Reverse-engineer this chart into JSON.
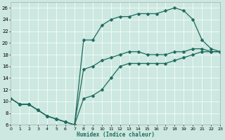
{
  "xlabel": "Humidex (Indice chaleur)",
  "bg_color": "#cce8e0",
  "line_color": "#1e6b5e",
  "grid_color": "#ffffff",
  "xlim": [
    0,
    23
  ],
  "ylim": [
    6,
    27
  ],
  "yticks": [
    6,
    8,
    10,
    12,
    14,
    16,
    18,
    20,
    22,
    24,
    26
  ],
  "xticks": [
    0,
    1,
    2,
    3,
    4,
    5,
    6,
    7,
    8,
    9,
    10,
    11,
    12,
    13,
    14,
    15,
    16,
    17,
    18,
    19,
    20,
    21,
    22,
    23
  ],
  "xtick_labels": [
    "0",
    "1",
    "2",
    "3",
    "4",
    "5",
    "6",
    "7",
    "8",
    "9",
    "10",
    "11",
    "12",
    "13",
    "14",
    "15",
    "16",
    "17",
    "18",
    "19",
    "20",
    "21",
    "22",
    "23"
  ],
  "s1_x": [
    0,
    1,
    2,
    3,
    4,
    5,
    6,
    7,
    8,
    9,
    10,
    11,
    12,
    13,
    14,
    15,
    16,
    17,
    18,
    19,
    20,
    21,
    22,
    23
  ],
  "s1_y": [
    10.5,
    9.5,
    9.5,
    8.5,
    7.5,
    7.0,
    6.5,
    6.0,
    20.5,
    20.5,
    23.0,
    24.0,
    24.5,
    24.5,
    25.0,
    25.0,
    25.0,
    25.5,
    26.0,
    25.5,
    24.0,
    20.5,
    19.0,
    18.5
  ],
  "s2_x": [
    0,
    1,
    2,
    3,
    4,
    5,
    6,
    7,
    8,
    9,
    10,
    11,
    12,
    13,
    14,
    15,
    16,
    17,
    18,
    19,
    20,
    21,
    22,
    23
  ],
  "s2_y": [
    10.5,
    9.5,
    9.5,
    8.5,
    7.5,
    7.0,
    6.5,
    6.0,
    15.5,
    16.0,
    17.0,
    17.5,
    18.0,
    18.5,
    18.5,
    18.0,
    18.0,
    18.0,
    18.5,
    18.5,
    19.0,
    19.0,
    18.5,
    18.5
  ],
  "s3_x": [
    0,
    1,
    2,
    3,
    4,
    5,
    6,
    7,
    8,
    9,
    10,
    11,
    12,
    13,
    14,
    15,
    16,
    17,
    18,
    19,
    20,
    21,
    22,
    23
  ],
  "s3_y": [
    10.5,
    9.5,
    9.5,
    8.5,
    7.5,
    7.0,
    6.5,
    6.0,
    10.5,
    11.0,
    12.0,
    14.0,
    16.0,
    16.5,
    16.5,
    16.5,
    16.5,
    16.5,
    17.0,
    17.5,
    18.0,
    18.5,
    18.5,
    18.5
  ]
}
